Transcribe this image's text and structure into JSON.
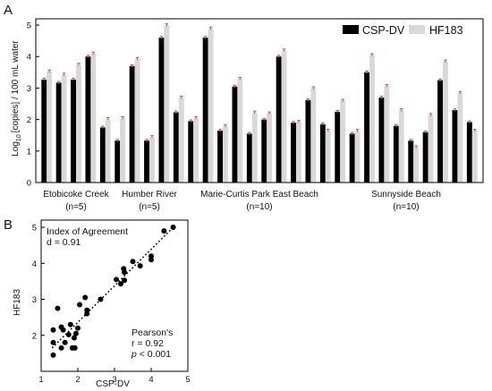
{
  "chart_data": [
    {
      "type": "bar",
      "panel_label": "A",
      "ylabel_log": "10",
      "ylabel_pre": "Log",
      "ylabel_post": "[copies] / 100 mL water",
      "ylim": [
        0,
        5.2
      ],
      "yticks": [
        "0",
        "1",
        "2",
        "3",
        "4",
        "5"
      ],
      "legend_placement": "top-right",
      "series": [
        {
          "name": "CSP-DV",
          "color": "#000000"
        },
        {
          "name": "HF183",
          "color": "#d9d9d9"
        }
      ],
      "error_bar_color": "#c0504d",
      "groups": [
        {
          "name": "Etobicoke Creek",
          "n": "(n=5)",
          "samples": [
            [
              3.27,
              3.53
            ],
            [
              3.17,
              3.43
            ],
            [
              3.27,
              3.75
            ],
            [
              4.0,
              4.1
            ],
            [
              1.75,
              2.02
            ]
          ]
        },
        {
          "name": "Humber River",
          "n": "(n=5)",
          "samples": [
            [
              1.33,
              2.05
            ],
            [
              3.7,
              3.93
            ],
            [
              1.33,
              1.45
            ],
            [
              4.6,
              5.0
            ],
            [
              2.23,
              2.7
            ]
          ]
        },
        {
          "name": "Marie-Curtis Park East Beach",
          "n": "(n=10)",
          "samples": [
            [
              1.95,
              2.05
            ],
            [
              4.6,
              4.9
            ],
            [
              1.65,
              1.8
            ],
            [
              3.05,
              3.3
            ],
            [
              1.55,
              2.23
            ],
            [
              2.0,
              2.2
            ],
            [
              4.0,
              4.2
            ],
            [
              1.9,
              1.93
            ],
            [
              2.62,
              3.0
            ],
            [
              1.85,
              1.65
            ]
          ]
        },
        {
          "name": "Sunnyside Beach",
          "n": "(n=10)",
          "samples": [
            [
              2.25,
              2.6
            ],
            [
              1.55,
              1.65
            ],
            [
              3.5,
              4.05
            ],
            [
              2.7,
              3.07
            ],
            [
              1.8,
              2.3
            ],
            [
              1.33,
              1.13
            ],
            [
              1.6,
              2.15
            ],
            [
              3.25,
              3.85
            ],
            [
              2.3,
              2.85
            ],
            [
              1.92,
              1.65
            ]
          ]
        }
      ]
    },
    {
      "type": "scatter",
      "panel_label": "B",
      "xlabel": "CSP-DV",
      "ylabel": "HF183",
      "xlim": [
        1,
        5
      ],
      "ylim": [
        1,
        5.2
      ],
      "xticks": [
        "1",
        "2",
        "3",
        "4",
        "5"
      ],
      "yticks": [
        "2",
        "3",
        "4",
        "5"
      ],
      "annotation_top": [
        "Index of Agreement",
        "d = 0.91"
      ],
      "annotation_bottom": {
        "line1": "Pearson's",
        "line2": "r = 0.92",
        "p_italic": "p",
        "p_rest": " < 0.001"
      },
      "trendline": {
        "style": "dotted",
        "from": [
          1.3,
          1.65
        ],
        "to": [
          4.65,
          5.05
        ]
      },
      "points": [
        [
          1.33,
          1.45
        ],
        [
          1.33,
          1.8
        ],
        [
          1.33,
          2.15
        ],
        [
          1.45,
          2.75
        ],
        [
          1.55,
          2.23
        ],
        [
          1.55,
          1.65
        ],
        [
          1.6,
          2.15
        ],
        [
          1.65,
          1.8
        ],
        [
          1.75,
          2.02
        ],
        [
          1.8,
          2.3
        ],
        [
          1.85,
          1.65
        ],
        [
          1.9,
          1.93
        ],
        [
          1.92,
          1.65
        ],
        [
          1.95,
          2.05
        ],
        [
          2.0,
          2.2
        ],
        [
          2.05,
          2.85
        ],
        [
          2.2,
          3.05
        ],
        [
          2.25,
          2.6
        ],
        [
          2.25,
          2.7
        ],
        [
          2.62,
          3.0
        ],
        [
          3.05,
          3.55
        ],
        [
          3.17,
          3.43
        ],
        [
          3.25,
          3.85
        ],
        [
          3.27,
          3.53
        ],
        [
          3.27,
          3.75
        ],
        [
          3.5,
          4.05
        ],
        [
          3.7,
          3.93
        ],
        [
          4.0,
          4.1
        ],
        [
          4.0,
          4.2
        ],
        [
          4.35,
          4.9
        ],
        [
          4.6,
          5.0
        ]
      ]
    }
  ]
}
